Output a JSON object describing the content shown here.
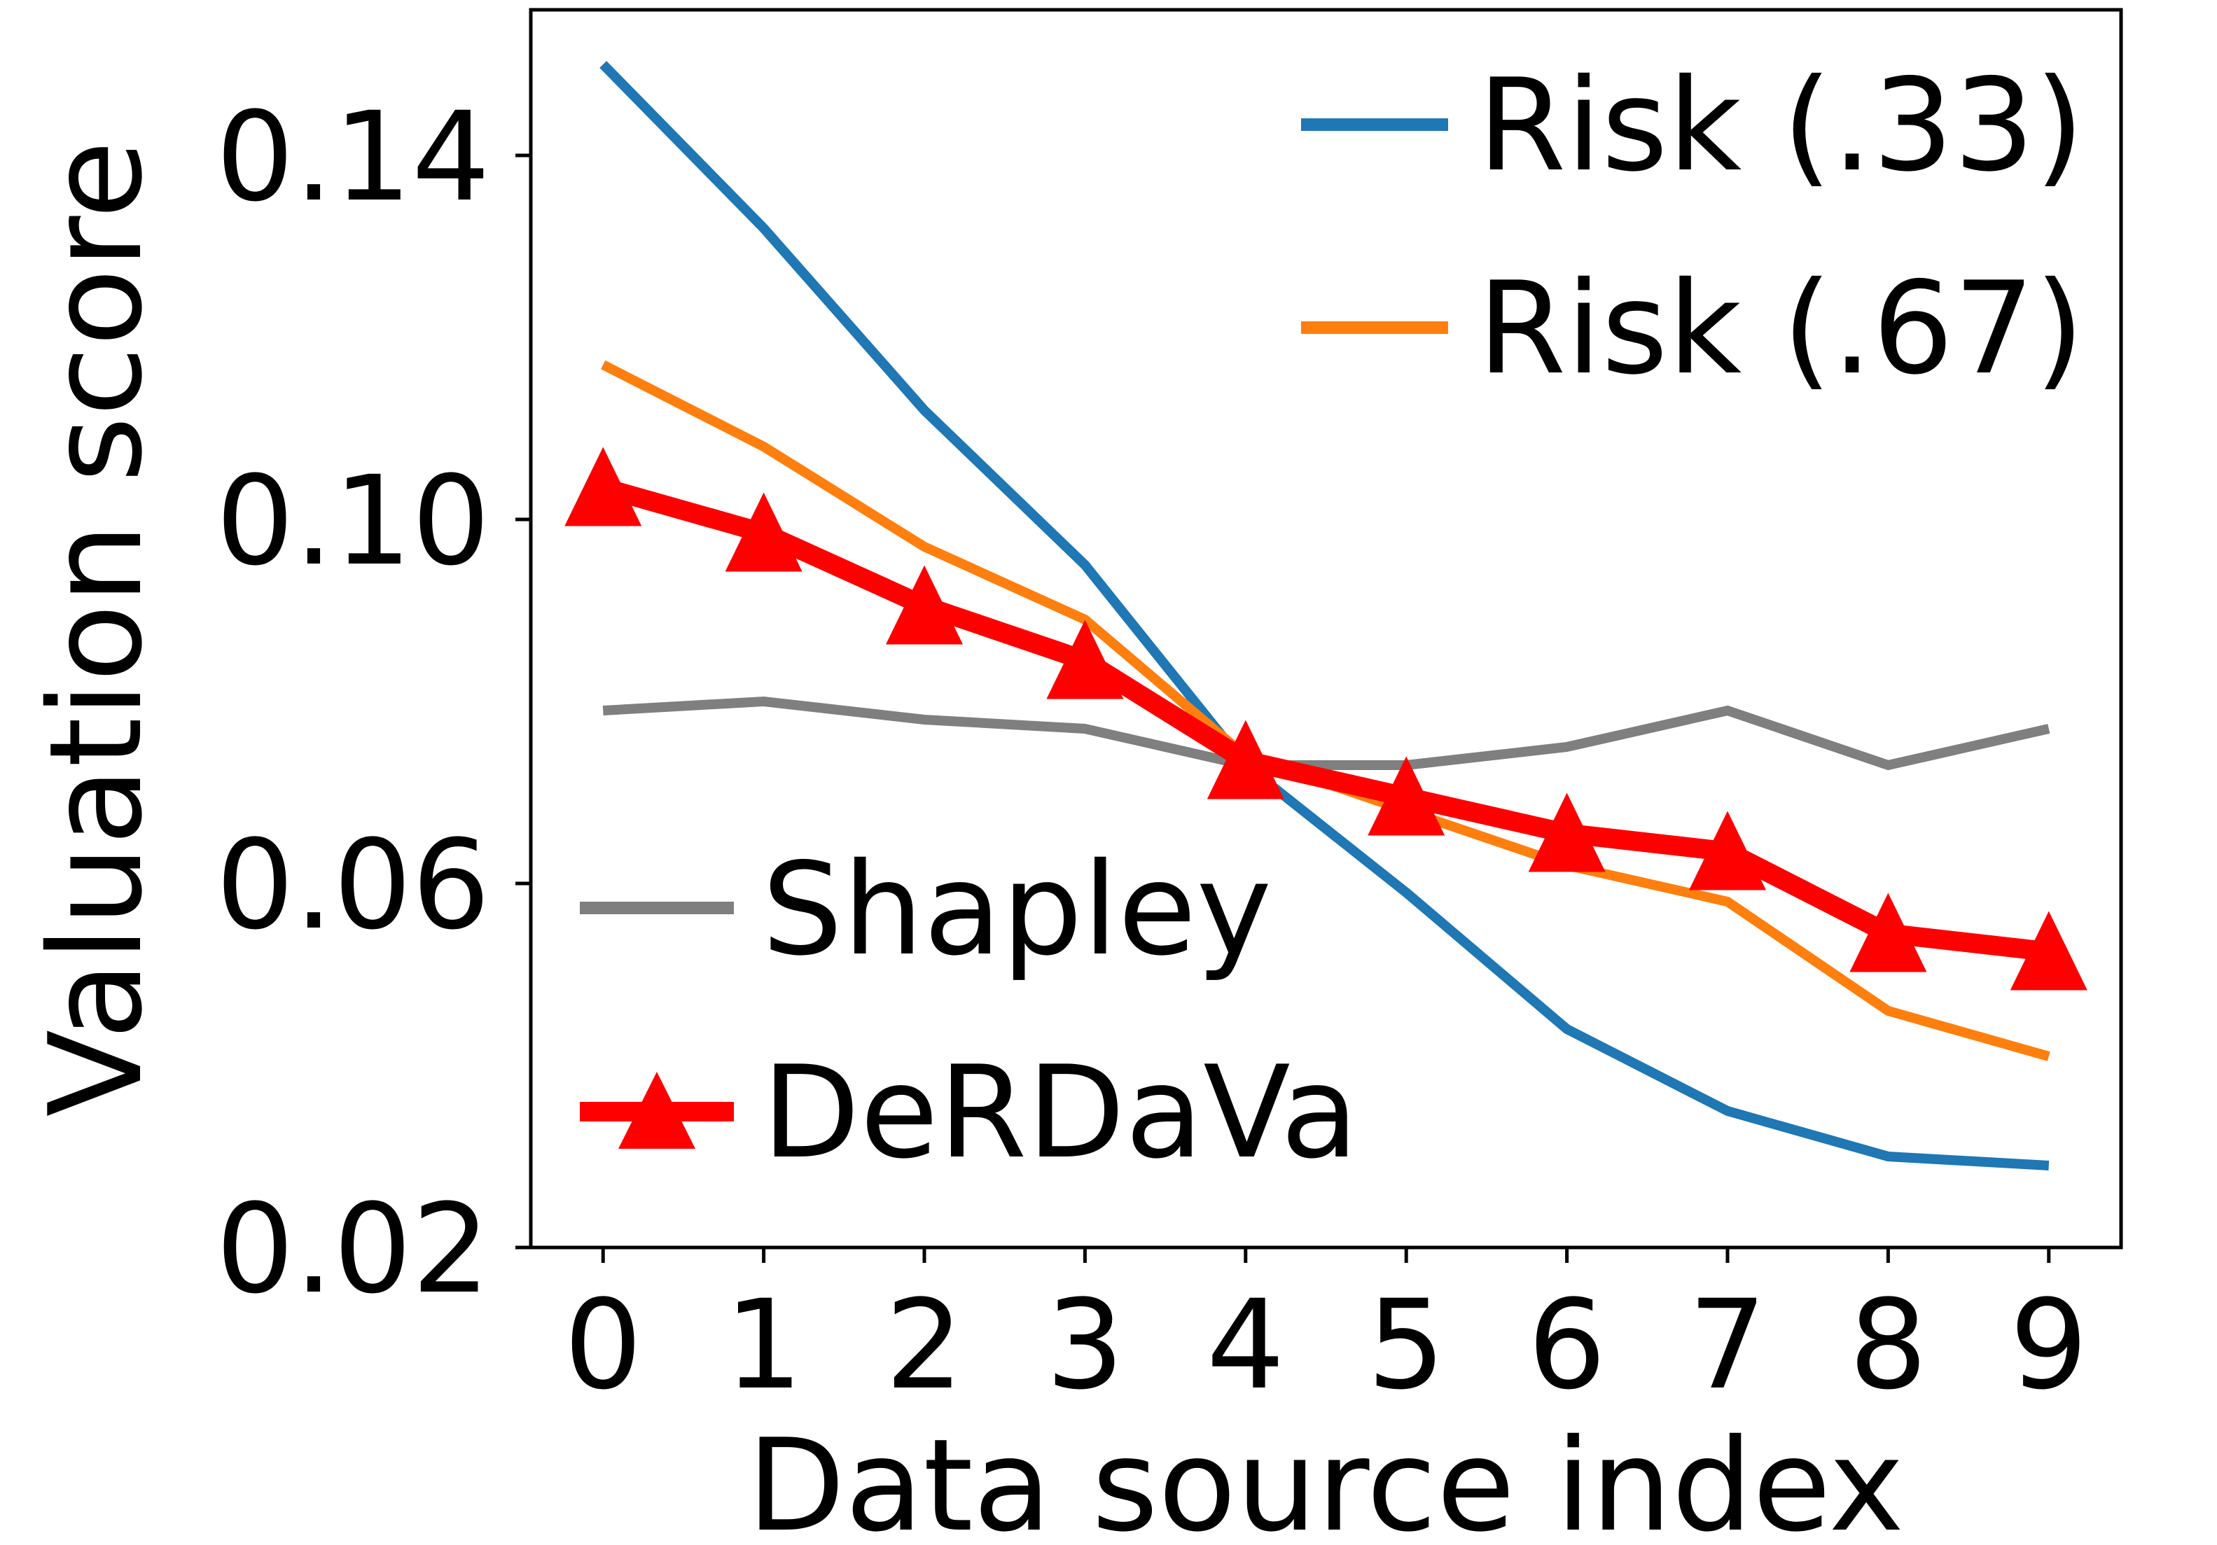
{
  "chart_data": {
    "type": "line",
    "title": "",
    "xlabel": "Data source index",
    "ylabel": "Valuation score",
    "x": [
      0,
      1,
      2,
      3,
      4,
      5,
      6,
      7,
      8,
      9
    ],
    "xticks": [
      "0",
      "1",
      "2",
      "3",
      "4",
      "5",
      "6",
      "7",
      "8",
      "9"
    ],
    "xlim": [
      -0.45,
      9.45
    ],
    "yticks": [
      "0.02",
      "0.06",
      "0.10",
      "0.14"
    ],
    "ytick_values": [
      0.02,
      0.06,
      0.1,
      0.14
    ],
    "ylim": [
      0.02,
      0.156
    ],
    "grid": false,
    "series": [
      {
        "name": "Risk (.33)",
        "color": "#1f77b4",
        "marker": "none",
        "values": [
          0.15,
          0.132,
          0.112,
          0.095,
          0.073,
          0.059,
          0.044,
          0.035,
          0.03,
          0.029
        ]
      },
      {
        "name": "Risk (.67)",
        "color": "#ff7f0e",
        "marker": "none",
        "values": [
          0.117,
          0.108,
          0.097,
          0.089,
          0.074,
          0.068,
          0.062,
          0.058,
          0.046,
          0.041
        ]
      },
      {
        "name": "Shapley",
        "color": "#7f7f7f",
        "marker": "none",
        "values": [
          0.079,
          0.08,
          0.078,
          0.077,
          0.073,
          0.073,
          0.075,
          0.079,
          0.073,
          0.077
        ]
      },
      {
        "name": "DeRDaVa",
        "color": "#ff0000",
        "marker": "triangle",
        "values": [
          0.1035,
          0.0985,
          0.0905,
          0.0845,
          0.0735,
          0.0695,
          0.0655,
          0.0635,
          0.0545,
          0.0525
        ]
      }
    ],
    "legend_upper": {
      "placement": "top-right",
      "entries": [
        "Risk (.33)",
        "Risk (.67)"
      ]
    },
    "legend_lower": {
      "placement": "bottom-left",
      "entries": [
        "Shapley",
        "DeRDaVa"
      ]
    }
  }
}
